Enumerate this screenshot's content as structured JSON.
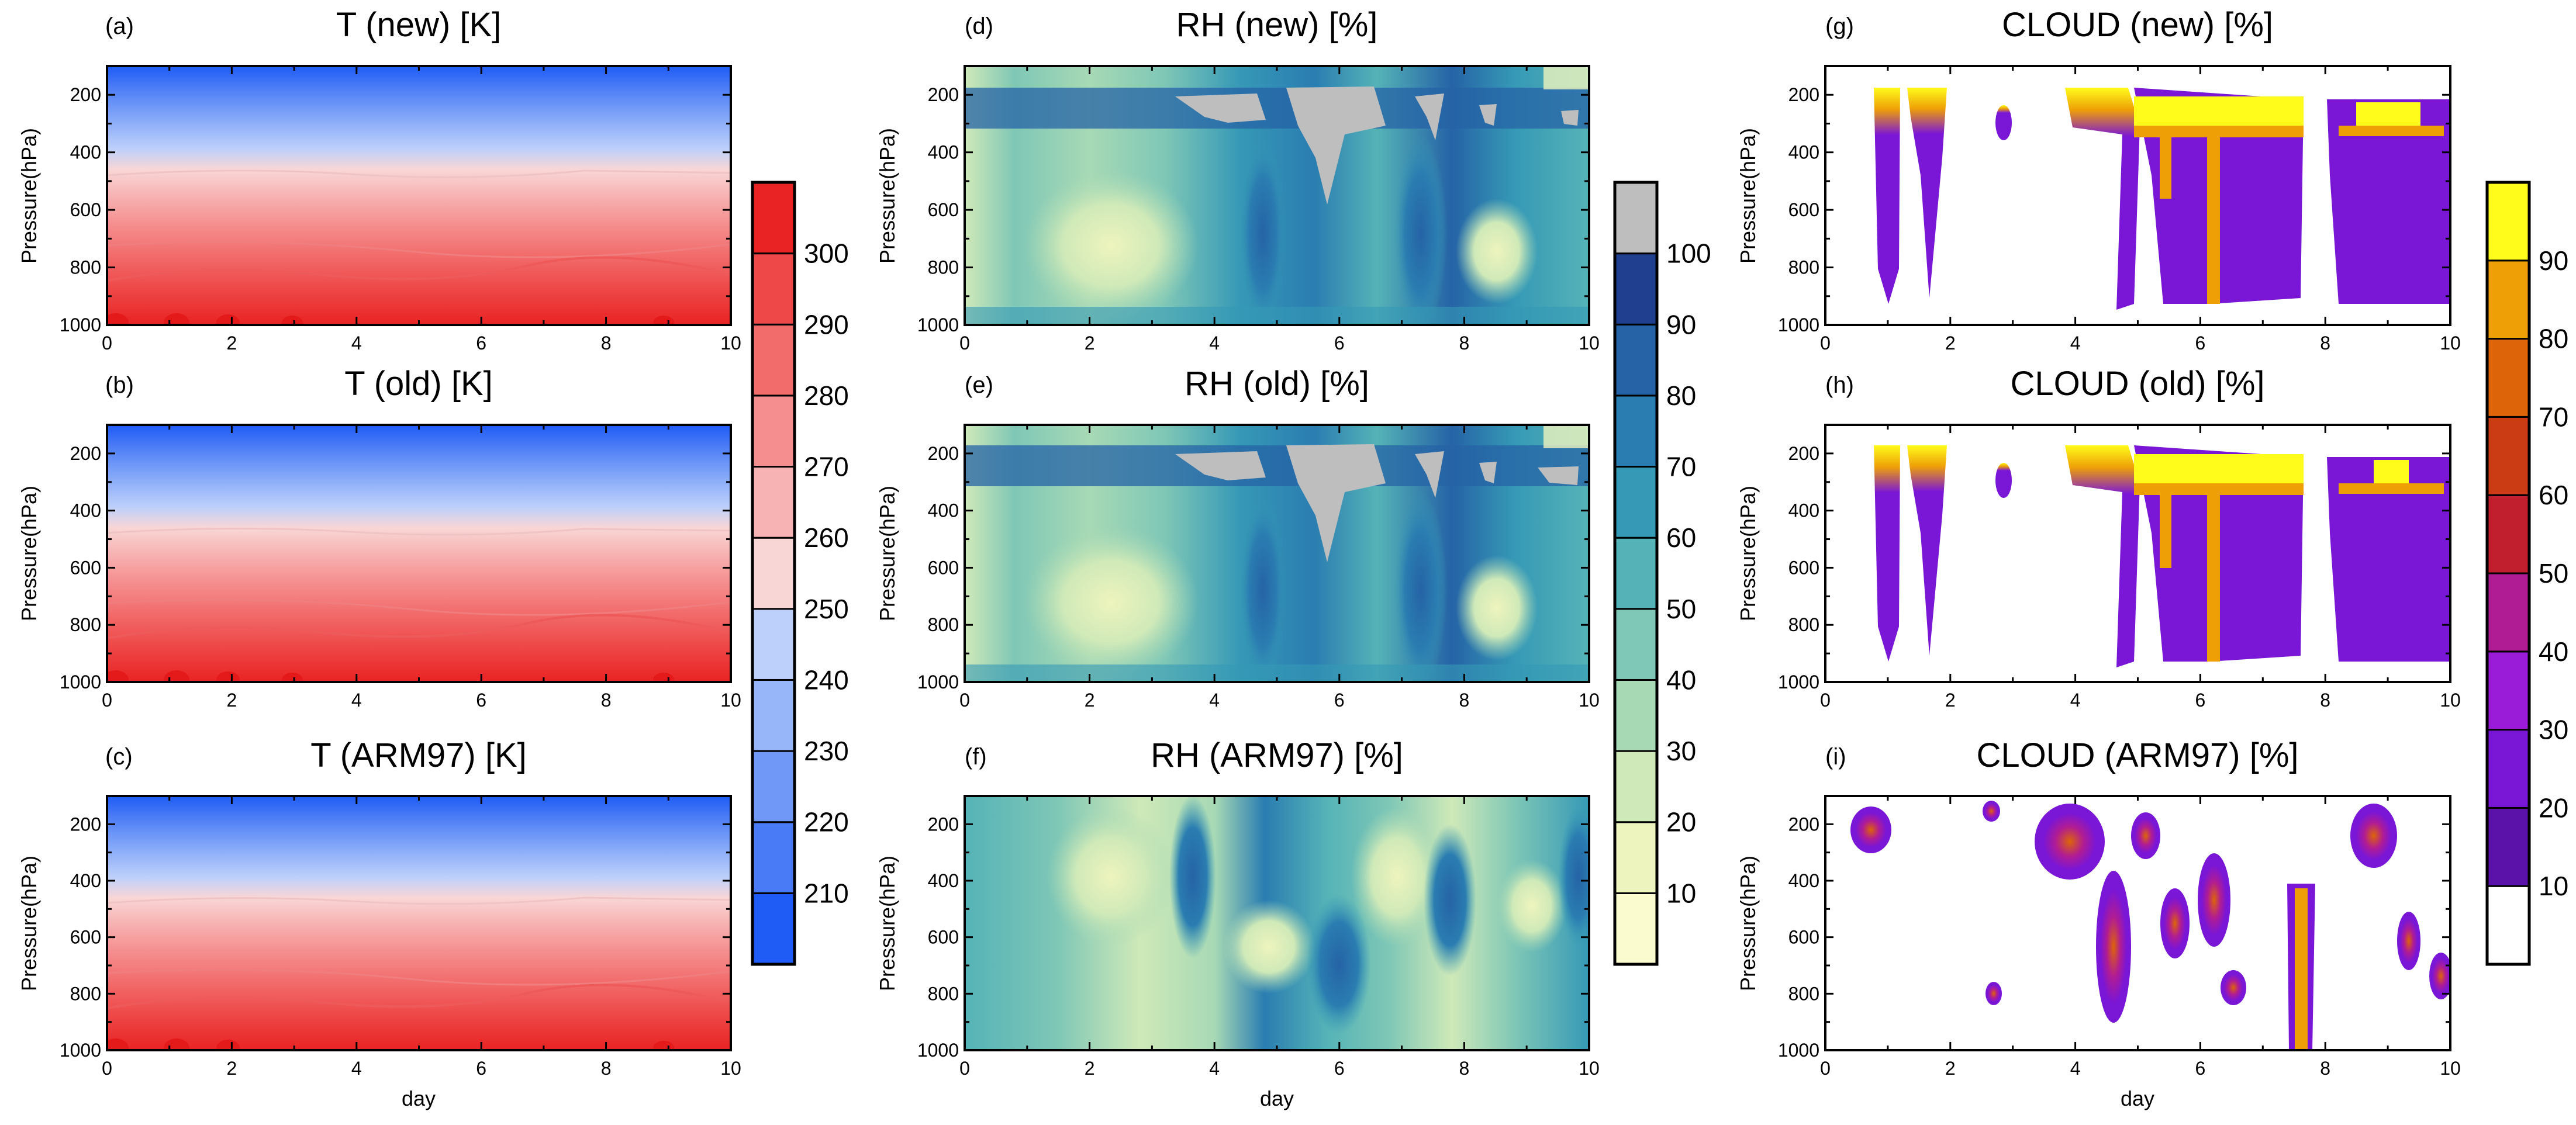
{
  "chart_data": [
    {
      "id": "a",
      "tag": "(a)",
      "type": "heatmap",
      "variable": "T",
      "title": "T (new) [K]",
      "xlabel": "",
      "ylabel": "Pressure(hPa)",
      "xlim": [
        0,
        10
      ],
      "ylim": [
        1000,
        100
      ],
      "xticks": [
        "0",
        "2",
        "4",
        "6",
        "8",
        "10"
      ],
      "yticks": [
        "200",
        "400",
        "600",
        "800",
        "1000"
      ],
      "levels": [
        210,
        220,
        230,
        240,
        250,
        260,
        270,
        280,
        290,
        300
      ],
      "profile_pressure_hPa": [
        100,
        150,
        200,
        250,
        300,
        350,
        400,
        500,
        600,
        700,
        800,
        900,
        1000
      ],
      "profile_value": [
        205,
        214,
        222,
        231,
        240,
        248,
        255,
        265,
        273,
        280,
        288,
        294,
        299
      ]
    },
    {
      "id": "b",
      "tag": "(b)",
      "type": "heatmap",
      "variable": "T",
      "title": "T (old) [K]",
      "xlabel": "",
      "ylabel": "Pressure(hPa)",
      "xlim": [
        0,
        10
      ],
      "ylim": [
        1000,
        100
      ],
      "xticks": [
        "0",
        "2",
        "4",
        "6",
        "8",
        "10"
      ],
      "yticks": [
        "200",
        "400",
        "600",
        "800",
        "1000"
      ],
      "levels": [
        210,
        220,
        230,
        240,
        250,
        260,
        270,
        280,
        290,
        300
      ],
      "profile_pressure_hPa": [
        100,
        150,
        200,
        250,
        300,
        350,
        400,
        500,
        600,
        700,
        800,
        900,
        1000
      ],
      "profile_value": [
        205,
        214,
        222,
        231,
        240,
        248,
        255,
        265,
        273,
        280,
        288,
        294,
        299
      ]
    },
    {
      "id": "c",
      "tag": "(c)",
      "type": "heatmap",
      "variable": "T",
      "title": "T (ARM97) [K]",
      "xlabel": "day",
      "ylabel": "Pressure(hPa)",
      "xlim": [
        0,
        10
      ],
      "ylim": [
        1000,
        100
      ],
      "xticks": [
        "0",
        "2",
        "4",
        "6",
        "8",
        "10"
      ],
      "yticks": [
        "200",
        "400",
        "600",
        "800",
        "1000"
      ],
      "levels": [
        210,
        220,
        230,
        240,
        250,
        260,
        270,
        280,
        290,
        300
      ],
      "profile_pressure_hPa": [
        100,
        150,
        200,
        250,
        300,
        350,
        400,
        500,
        600,
        700,
        800,
        900,
        1000
      ],
      "profile_value": [
        204,
        213,
        221,
        230,
        239,
        248,
        256,
        266,
        274,
        281,
        289,
        295,
        299
      ]
    },
    {
      "id": "d",
      "tag": "(d)",
      "type": "heatmap",
      "variable": "RH",
      "title": "RH (new) [%]",
      "xlabel": "",
      "ylabel": "Pressure(hPa)",
      "xlim": [
        0,
        10
      ],
      "ylim": [
        1000,
        100
      ],
      "xticks": [
        "0",
        "2",
        "4",
        "6",
        "8",
        "10"
      ],
      "yticks": [
        "200",
        "400",
        "600",
        "800",
        "1000"
      ],
      "levels": [
        10,
        20,
        30,
        40,
        50,
        60,
        70,
        80,
        90,
        100
      ]
    },
    {
      "id": "e",
      "tag": "(e)",
      "type": "heatmap",
      "variable": "RH",
      "title": "RH (old) [%]",
      "xlabel": "",
      "ylabel": "Pressure(hPa)",
      "xlim": [
        0,
        10
      ],
      "ylim": [
        1000,
        100
      ],
      "xticks": [
        "0",
        "2",
        "4",
        "6",
        "8",
        "10"
      ],
      "yticks": [
        "200",
        "400",
        "600",
        "800",
        "1000"
      ],
      "levels": [
        10,
        20,
        30,
        40,
        50,
        60,
        70,
        80,
        90,
        100
      ]
    },
    {
      "id": "f",
      "tag": "(f)",
      "type": "heatmap",
      "variable": "RH",
      "title": "RH (ARM97) [%]",
      "xlabel": "day",
      "ylabel": "Pressure(hPa)",
      "xlim": [
        0,
        10
      ],
      "ylim": [
        1000,
        100
      ],
      "xticks": [
        "0",
        "2",
        "4",
        "6",
        "8",
        "10"
      ],
      "yticks": [
        "200",
        "400",
        "600",
        "800",
        "1000"
      ],
      "levels": [
        10,
        20,
        30,
        40,
        50,
        60,
        70,
        80,
        90,
        100
      ]
    },
    {
      "id": "g",
      "tag": "(g)",
      "type": "heatmap",
      "variable": "CLOUD",
      "title": "CLOUD (new) [%]",
      "xlabel": "",
      "ylabel": "Pressure(hPa)",
      "xlim": [
        0,
        10
      ],
      "ylim": [
        1000,
        100
      ],
      "xticks": [
        "0",
        "2",
        "4",
        "6",
        "8",
        "10"
      ],
      "yticks": [
        "200",
        "400",
        "600",
        "800",
        "1000"
      ],
      "levels": [
        10,
        20,
        30,
        40,
        50,
        60,
        70,
        80,
        90
      ]
    },
    {
      "id": "h",
      "tag": "(h)",
      "type": "heatmap",
      "variable": "CLOUD",
      "title": "CLOUD (old) [%]",
      "xlabel": "",
      "ylabel": "Pressure(hPa)",
      "xlim": [
        0,
        10
      ],
      "ylim": [
        1000,
        100
      ],
      "xticks": [
        "0",
        "2",
        "4",
        "6",
        "8",
        "10"
      ],
      "yticks": [
        "200",
        "400",
        "600",
        "800",
        "1000"
      ],
      "levels": [
        10,
        20,
        30,
        40,
        50,
        60,
        70,
        80,
        90
      ]
    },
    {
      "id": "i",
      "tag": "(i)",
      "type": "heatmap",
      "variable": "CLOUD",
      "title": "CLOUD (ARM97) [%]",
      "xlabel": "day",
      "ylabel": "Pressure(hPa)",
      "xlim": [
        0,
        10
      ],
      "ylim": [
        1000,
        100
      ],
      "xticks": [
        "0",
        "2",
        "4",
        "6",
        "8",
        "10"
      ],
      "yticks": [
        "200",
        "400",
        "600",
        "800",
        "1000"
      ],
      "levels": [
        10,
        20,
        30,
        40,
        50,
        60,
        70,
        80,
        90
      ]
    }
  ],
  "colorbars": [
    {
      "id": "T",
      "labels": [
        "210",
        "220",
        "230",
        "240",
        "250",
        "260",
        "270",
        "280",
        "290",
        "300"
      ],
      "colors": [
        "#1e5cf5",
        "#4a7bf6",
        "#7099f7",
        "#97b5f9",
        "#bdd0fb",
        "#f9d6d6",
        "#f7b3b3",
        "#f58f8f",
        "#f26c6c",
        "#ee4848",
        "#e92323"
      ]
    },
    {
      "id": "RH",
      "labels": [
        "10",
        "20",
        "30",
        "40",
        "50",
        "60",
        "70",
        "80",
        "90",
        "100"
      ],
      "colors": [
        "#fbfbd0",
        "#eef4bd",
        "#cfe9b8",
        "#a7d9b5",
        "#7fc7b6",
        "#55b3b7",
        "#3699b6",
        "#2a7db1",
        "#2563a6",
        "#213f8f",
        "#bebebe"
      ]
    },
    {
      "id": "CLOUD",
      "labels": [
        "10",
        "20",
        "30",
        "40",
        "50",
        "60",
        "70",
        "80",
        "90"
      ],
      "colors": [
        "#ffffff",
        "#5a12a8",
        "#7a16d6",
        "#9a1cd8",
        "#b01c94",
        "#c21f2e",
        "#cc3c14",
        "#dd6408",
        "#ee9f06",
        "#fffc1c"
      ]
    }
  ]
}
